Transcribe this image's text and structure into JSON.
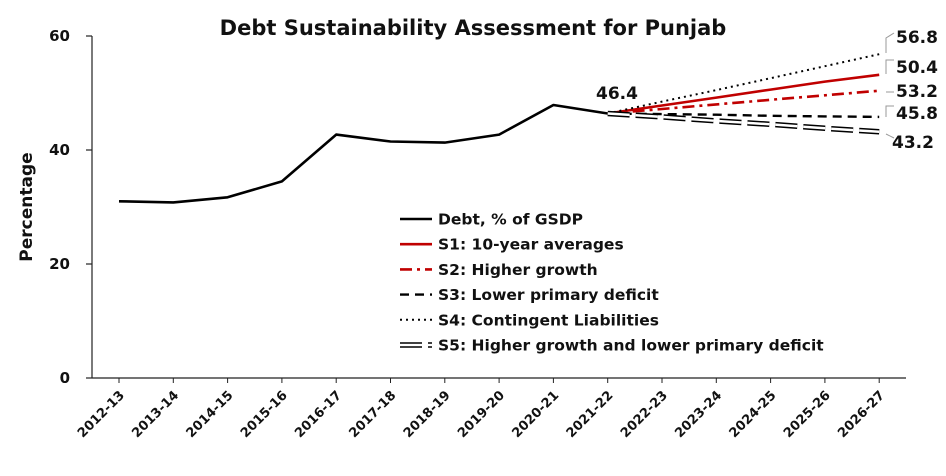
{
  "chart_data": {
    "type": "line",
    "title": "Debt Sustainability Assessment for Punjab",
    "xlabel": "",
    "ylabel": "Percentage",
    "ylim": [
      0,
      60
    ],
    "yticks": [
      0,
      20,
      40,
      60
    ],
    "grid": false,
    "legend_position": "center",
    "categories": [
      "2012-13",
      "2013-14",
      "2014-15",
      "2015-16",
      "2016-17",
      "2017-18",
      "2018-19",
      "2019-20",
      "2020-21",
      "2021-22",
      "2022-23",
      "2023-24",
      "2024-25",
      "2025-26",
      "2026-27"
    ],
    "series": [
      {
        "name": "Debt, % of GSDP",
        "color": "#000000",
        "style": "solid",
        "width": 2.6,
        "values": [
          31.0,
          30.8,
          31.7,
          34.5,
          42.7,
          41.5,
          41.3,
          42.7,
          47.9,
          46.4,
          null,
          null,
          null,
          null,
          null
        ]
      },
      {
        "name": "S1: 10-year averages",
        "color": "#c00000",
        "style": "solid",
        "width": 2.6,
        "values": [
          null,
          null,
          null,
          null,
          null,
          null,
          null,
          null,
          null,
          46.4,
          47.8,
          49.2,
          50.6,
          52.0,
          53.2
        ]
      },
      {
        "name": "S2: Higher growth",
        "color": "#c00000",
        "style": "dashdot",
        "width": 2.6,
        "values": [
          null,
          null,
          null,
          null,
          null,
          null,
          null,
          null,
          null,
          46.4,
          47.2,
          48.0,
          48.8,
          49.6,
          50.4
        ]
      },
      {
        "name": "S3: Lower primary deficit",
        "color": "#000000",
        "style": "dashed",
        "width": 2.4,
        "values": [
          null,
          null,
          null,
          null,
          null,
          null,
          null,
          null,
          null,
          46.4,
          46.3,
          46.2,
          46.0,
          45.9,
          45.8
        ]
      },
      {
        "name": "S4: Contingent Liabilities",
        "color": "#000000",
        "style": "dotted",
        "width": 2.0,
        "values": [
          null,
          null,
          null,
          null,
          null,
          null,
          null,
          null,
          null,
          46.4,
          48.5,
          50.5,
          52.6,
          54.7,
          56.8
        ]
      },
      {
        "name": "S5: Higher growth and lower primary deficit",
        "color": "#000000",
        "style": "double",
        "width": 2.0,
        "values": [
          null,
          null,
          null,
          null,
          null,
          null,
          null,
          null,
          null,
          46.4,
          45.8,
          45.1,
          44.5,
          43.8,
          43.2
        ]
      }
    ],
    "annotations": [
      "46.4",
      "56.8",
      "50.4",
      "53.2",
      "45.8",
      "43.2"
    ]
  }
}
